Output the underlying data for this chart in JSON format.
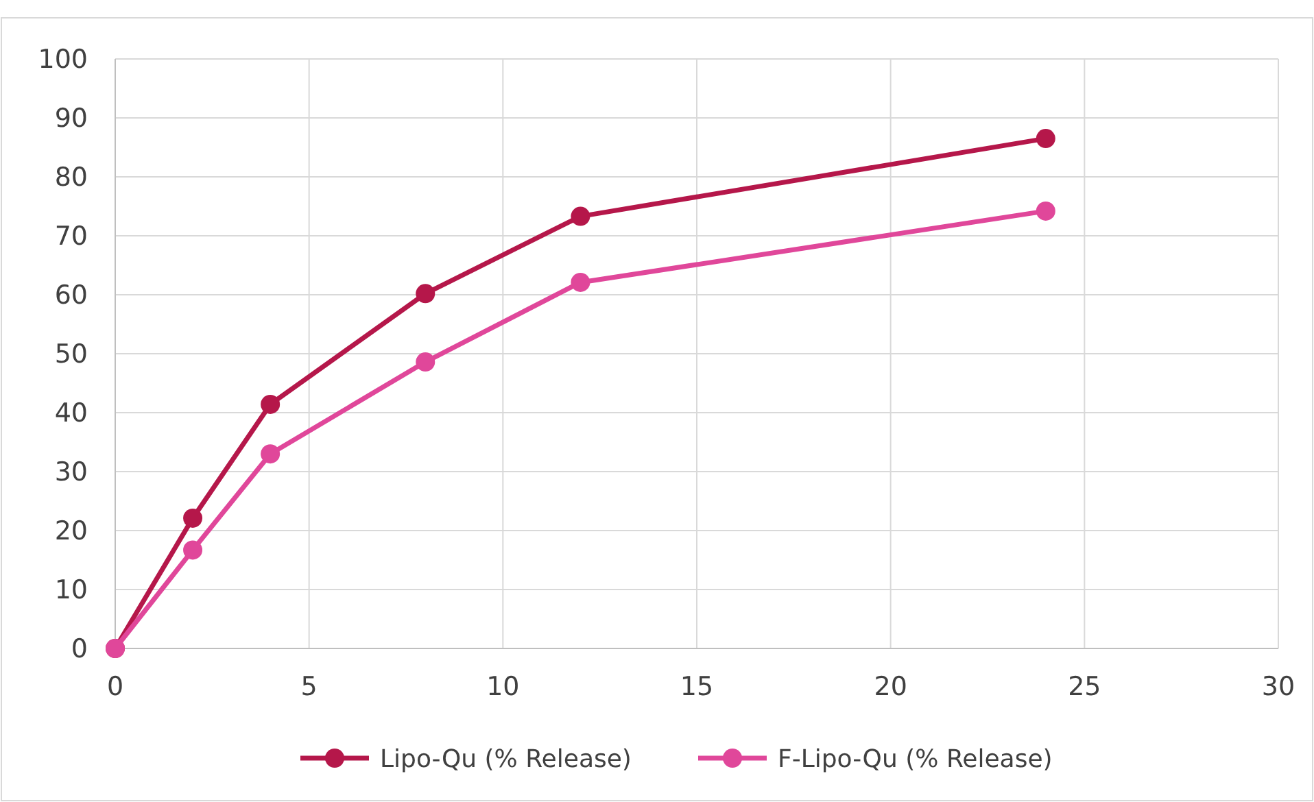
{
  "chart_data": {
    "type": "line",
    "x": [
      0,
      2,
      4,
      8,
      12,
      24
    ],
    "series": [
      {
        "name": "Lipo-Qu (% Release)",
        "color": "#b5174a",
        "values": [
          0,
          22.1,
          41.4,
          60.2,
          73.3,
          86.5
        ]
      },
      {
        "name": "F-Lipo-Qu (% Release)",
        "color": "#e0479a",
        "values": [
          0,
          16.7,
          33,
          48.6,
          62.1,
          74.2
        ]
      }
    ],
    "xlim": [
      0,
      30
    ],
    "xticks": [
      0,
      5,
      10,
      15,
      20,
      25,
      30
    ],
    "ylim": [
      0,
      100
    ],
    "yticks": [
      0,
      10,
      20,
      30,
      40,
      50,
      60,
      70,
      80,
      90,
      100
    ],
    "grid": true,
    "legend": "bottom",
    "marker": "circle",
    "line_style": "solid"
  }
}
